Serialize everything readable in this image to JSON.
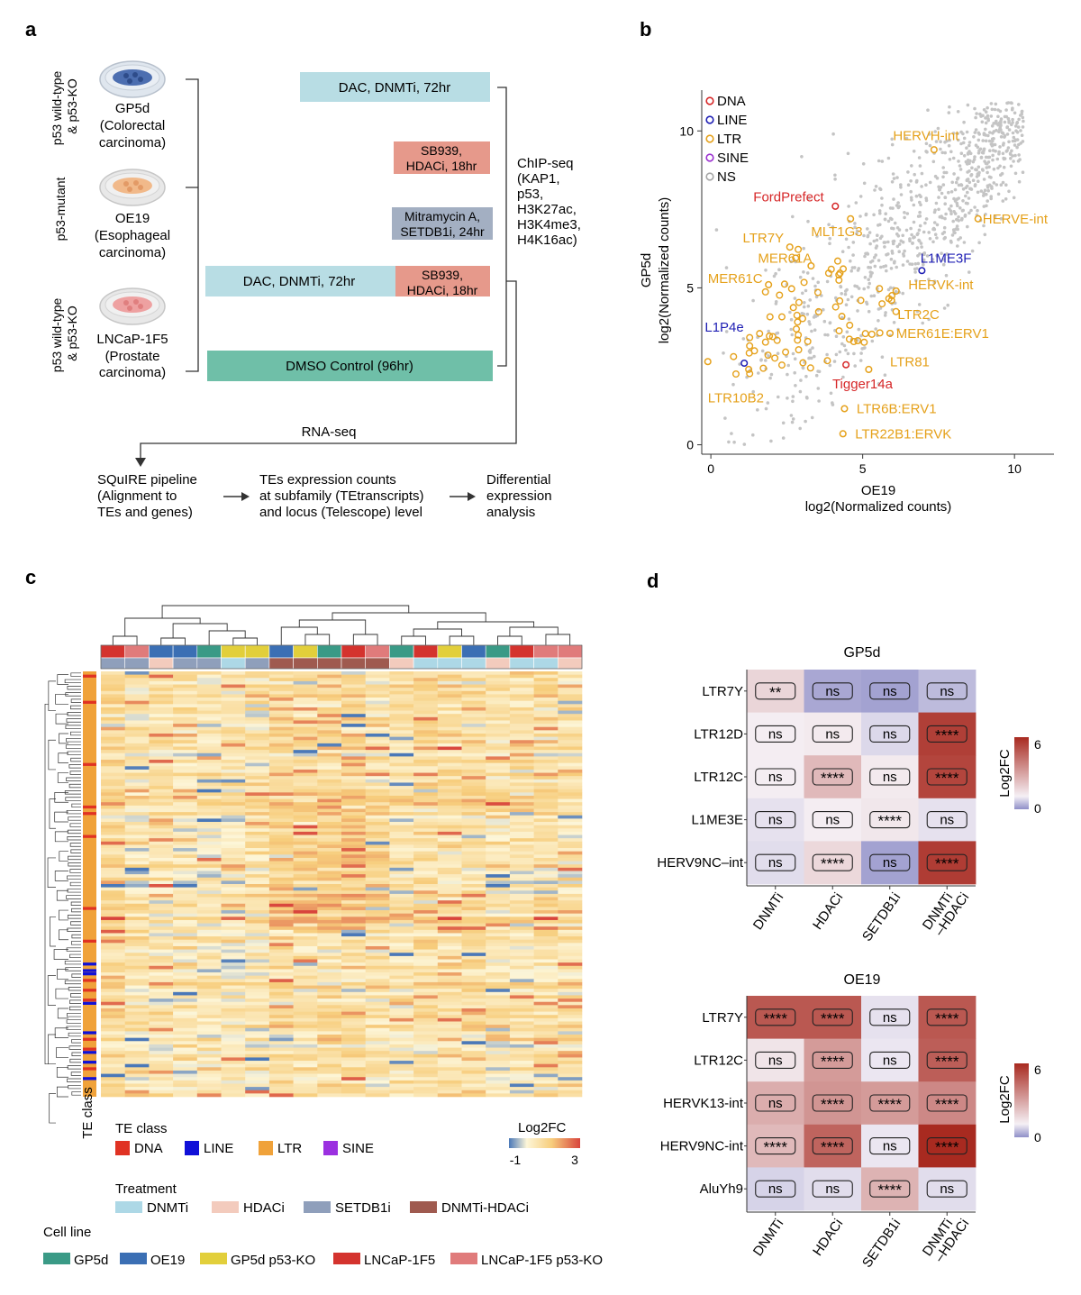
{
  "panels": {
    "a": "a",
    "b": "b",
    "c": "c",
    "d": "d"
  },
  "panel_a": {
    "cell_lines": [
      {
        "side": "p53 wild-type & p53-KO",
        "side1": "p53 wild-type",
        "side2": "& p53-KO",
        "name": "GP5d",
        "desc1": "(Colorectal",
        "desc2": "carcinoma)",
        "dish_color": "#3b5fa8"
      },
      {
        "side": "p53-mutant",
        "side1": "p53-mutant",
        "side2": "",
        "name": "OE19",
        "desc1": "(Esophageal",
        "desc2": "carcinoma)",
        "dish_color": "#f1b98a"
      },
      {
        "side": "p53 wild-type & p53-KO",
        "side1": "p53 wild-type",
        "side2": "& p53-KO",
        "name": "LNCaP-1F5",
        "desc1": "(Prostate",
        "desc2": "carcinoma)",
        "dish_color": "#eea1a1"
      }
    ],
    "treatments": {
      "dac": "DAC, DNMTi, 72hr",
      "sb_1": "SB939,",
      "sb_2": "HDACi, 18hr",
      "mit_1": "Mitramycin A,",
      "mit_2": "SETDB1i, 24hr",
      "dac2": "DAC, DNMTi, 72hr",
      "sb2_1": "SB939,",
      "sb2_2": "HDACi, 18hr",
      "dmso": "DMSO Control (96hr)"
    },
    "chip": [
      "ChIP-seq",
      "(KAP1,",
      "p53,",
      "H3K27ac,",
      "H3K4me3,",
      "H4K16ac)"
    ],
    "rnaseq": "RNA-seq",
    "pipeline": [
      [
        "SQuIRE pipeline",
        "(Alignment to",
        "TEs and genes)"
      ],
      [
        "TEs expression counts",
        "at subfamily (TEtranscripts)",
        "and locus (Telescope) level"
      ],
      [
        "Differential",
        "expression",
        "analysis"
      ]
    ]
  },
  "panel_b": {
    "xlabel1": "OE19",
    "xlabel2": "log2(Normalized counts)",
    "ylabel1": "GP5d",
    "ylabel2": "log2(Normalized counts)",
    "xlim": [
      -0.3,
      11.3
    ],
    "ylim": [
      -0.3,
      11.3
    ],
    "xticks": [
      0,
      5,
      10
    ],
    "yticks": [
      0,
      5,
      10
    ],
    "legend": [
      {
        "label": "DNA",
        "color": "#d62728"
      },
      {
        "label": "LINE",
        "color": "#1f1fb4"
      },
      {
        "label": "LTR",
        "color": "#e5a11b"
      },
      {
        "label": "SINE",
        "color": "#9b30d0"
      },
      {
        "label": "NS",
        "color": "#a6a6a6"
      }
    ],
    "labeled_points": [
      {
        "label": "HERVH-int",
        "x": 7.35,
        "y": 9.4,
        "color": "#e5a11b",
        "lx": 6.0,
        "ly": 9.7
      },
      {
        "label": "HERVE-int",
        "x": 8.8,
        "y": 7.2,
        "color": "#e5a11b",
        "lx": 8.95,
        "ly": 7.05
      },
      {
        "label": "FordPrefect",
        "x": 4.1,
        "y": 7.6,
        "color": "#d62728",
        "lx": 1.4,
        "ly": 7.75
      },
      {
        "label": "MLT1G3",
        "x": 4.6,
        "y": 7.2,
        "color": "#e5a11b",
        "lx": 3.3,
        "ly": 6.65
      },
      {
        "label": "LTR7Y",
        "x": 2.6,
        "y": 6.3,
        "color": "#e5a11b",
        "lx": 1.05,
        "ly": 6.45
      },
      {
        "label": "MER61A",
        "x": 3.3,
        "y": 5.7,
        "color": "#e5a11b",
        "lx": 1.55,
        "ly": 5.8
      },
      {
        "label": "L1ME3F",
        "x": 6.95,
        "y": 5.55,
        "color": "#1f1fb4",
        "lx": 6.9,
        "ly": 5.8
      },
      {
        "label": "HERVK-int",
        "x": 6.1,
        "y": 4.9,
        "color": "#e5a11b",
        "lx": 6.5,
        "ly": 4.95
      },
      {
        "label": "MER61C",
        "x": 1.9,
        "y": 5.1,
        "color": "#e5a11b",
        "lx": -0.1,
        "ly": 5.15
      },
      {
        "label": "LTR2C",
        "x": 5.95,
        "y": 4.6,
        "color": "#e5a11b",
        "lx": 6.15,
        "ly": 4.0
      },
      {
        "label": "L1P4e",
        "x": 1.1,
        "y": 2.6,
        "color": "#1f1fb4",
        "lx": -0.2,
        "ly": 3.6
      },
      {
        "label": "MER61E:ERV1",
        "x": 5.9,
        "y": 3.55,
        "color": "#e5a11b",
        "lx": 6.1,
        "ly": 3.4
      },
      {
        "label": "LTR81",
        "x": 5.2,
        "y": 2.4,
        "color": "#e5a11b",
        "lx": 5.9,
        "ly": 2.5
      },
      {
        "label": "Tigger14a",
        "x": 4.45,
        "y": 2.55,
        "color": "#d62728",
        "lx": 4.0,
        "ly": 1.8
      },
      {
        "label": "LTR10B2",
        "x": -0.1,
        "y": 2.65,
        "color": "#e5a11b",
        "lx": -0.1,
        "ly": 1.35
      },
      {
        "label": "LTR6B:ERV1",
        "x": 4.4,
        "y": 1.15,
        "color": "#e5a11b",
        "lx": 4.8,
        "ly": 1.0
      },
      {
        "label": "LTR22B1:ERVK",
        "x": 4.35,
        "y": 0.35,
        "color": "#e5a11b",
        "lx": 4.75,
        "ly": 0.2
      }
    ]
  },
  "panel_c": {
    "column_cell_colors": [
      "#d4332e",
      "#e07b7b",
      "#3b6fb4",
      "#3b6fb4",
      "#3a9a86",
      "#e2cf3b",
      "#e2cf3b",
      "#3b6fb4",
      "#e2cf3b",
      "#3a9a86",
      "#d4332e",
      "#e07b7b",
      "#3a9a86",
      "#d4332e",
      "#e2cf3b",
      "#3b6fb4",
      "#3a9a86",
      "#d4332e",
      "#e07b7b",
      "#e07b7b"
    ],
    "column_treatment_colors": [
      "#8f9fbb",
      "#8f9fbb",
      "#f3cbbd",
      "#8f9fbb",
      "#8f9fbb",
      "#add8e6",
      "#8f9fbb",
      "#9f5a4f",
      "#9f5a4f",
      "#9f5a4f",
      "#9f5a4f",
      "#9f5a4f",
      "#f3cbbd",
      "#add8e6",
      "#add8e6",
      "#add8e6",
      "#f3cbbd",
      "#add8e6",
      "#add8e6",
      "#f3cbbd"
    ],
    "te_class_title": "TE class",
    "te_class_axis_label": "TE class",
    "te_classes": [
      {
        "label": "DNA",
        "color": "#e03223"
      },
      {
        "label": "LINE",
        "color": "#1010d8"
      },
      {
        "label": "LTR",
        "color": "#f0a23a"
      },
      {
        "label": "SINE",
        "color": "#9b30e0"
      }
    ],
    "colorbar_title": "Log2FC",
    "colorbar_min": "-1",
    "colorbar_max": "3",
    "treatment_title": "Treatment",
    "treatments": [
      {
        "label": "DNMTi",
        "color": "#add8e6"
      },
      {
        "label": "HDACi",
        "color": "#f3cbbd"
      },
      {
        "label": "SETDB1i",
        "color": "#8f9fbb"
      },
      {
        "label": "DNMTi-HDACi",
        "color": "#9f5a4f"
      }
    ],
    "cell_line_title": "Cell line",
    "cell_lines": [
      {
        "label": "GP5d",
        "color": "#3a9a86"
      },
      {
        "label": "OE19",
        "color": "#3b6fb4"
      },
      {
        "label": "GP5d p53-KO",
        "color": "#e2cf3b"
      },
      {
        "label": "LNCaP-1F5",
        "color": "#d4332e"
      },
      {
        "label": "LNCaP-1F5 p53-KO",
        "color": "#e07b7b"
      }
    ]
  },
  "panel_d": {
    "columns": [
      "DNMTi",
      "HDACi",
      "SETDB1i",
      "DNMTi\n–HDACi"
    ],
    "col1": "DNMTi",
    "col2": "HDACi",
    "col3": "SETDB1i",
    "col4a": "DNMTi",
    "col4b": "–HDACi",
    "colorbar_title": "Log2FC",
    "colorbar_max": "6",
    "colorbar_min": "0",
    "heatmaps": [
      {
        "title": "GP5d",
        "rows": [
          "LTR7Y",
          "LTR12D",
          "LTR12C",
          "L1ME3E",
          "HERV9NC–int"
        ],
        "labels": [
          [
            "**",
            "ns",
            "ns",
            "ns"
          ],
          [
            "ns",
            "ns",
            "ns",
            "****"
          ],
          [
            "ns",
            "****",
            "ns",
            "****"
          ],
          [
            "ns",
            "ns",
            "****",
            "ns"
          ],
          [
            "ns",
            "****",
            "ns",
            "****"
          ]
        ],
        "values": [
          [
            0.9,
            -1.5,
            -1.6,
            -1.1
          ],
          [
            0.1,
            0.2,
            -0.5,
            5.8
          ],
          [
            0.1,
            1.8,
            0.2,
            5.6
          ],
          [
            -0.3,
            0.1,
            0.3,
            -0.3
          ],
          [
            -0.4,
            0.8,
            -1.6,
            5.9
          ]
        ]
      },
      {
        "title": "OE19",
        "rows": [
          "LTR7Y",
          "LTR12C",
          "HERVK13-int",
          "HERV9NC-int",
          "AluYh9"
        ],
        "labels": [
          [
            "****",
            "****",
            "ns",
            "****"
          ],
          [
            "ns",
            "****",
            "ns",
            "****"
          ],
          [
            "ns",
            "****",
            "****",
            "****"
          ],
          [
            "****",
            "****",
            "ns",
            "****"
          ],
          [
            "ns",
            "ns",
            "****",
            "ns"
          ]
        ],
        "values": [
          [
            5.0,
            5.0,
            -0.3,
            5.0
          ],
          [
            0.4,
            2.8,
            -0.2,
            4.8
          ],
          [
            2.2,
            3.0,
            2.8,
            3.4
          ],
          [
            1.8,
            4.6,
            -0.2,
            6.5
          ],
          [
            -0.6,
            -0.4,
            2.0,
            -0.4
          ]
        ]
      }
    ]
  }
}
